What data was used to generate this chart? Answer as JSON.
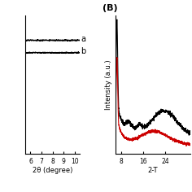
{
  "panel_A": {
    "xlabel": "2θ (degree)",
    "xlim": [
      5.5,
      10.5
    ],
    "ylim": [
      0,
      1
    ],
    "line_a_y": 0.82,
    "line_b_y": 0.73,
    "line_color": "#000000",
    "label_a": "a",
    "label_b": "b",
    "xticks": [
      6,
      7,
      8,
      9,
      10
    ]
  },
  "panel_B": {
    "label": "(B)",
    "xlabel": "2-T",
    "ylabel": "Intensity (a.u.)",
    "xlim": [
      6.0,
      33
    ],
    "ylim": [
      0,
      1
    ],
    "xticks": [
      8,
      16,
      24
    ],
    "black_color": "#000000",
    "red_color": "#cc0000"
  }
}
